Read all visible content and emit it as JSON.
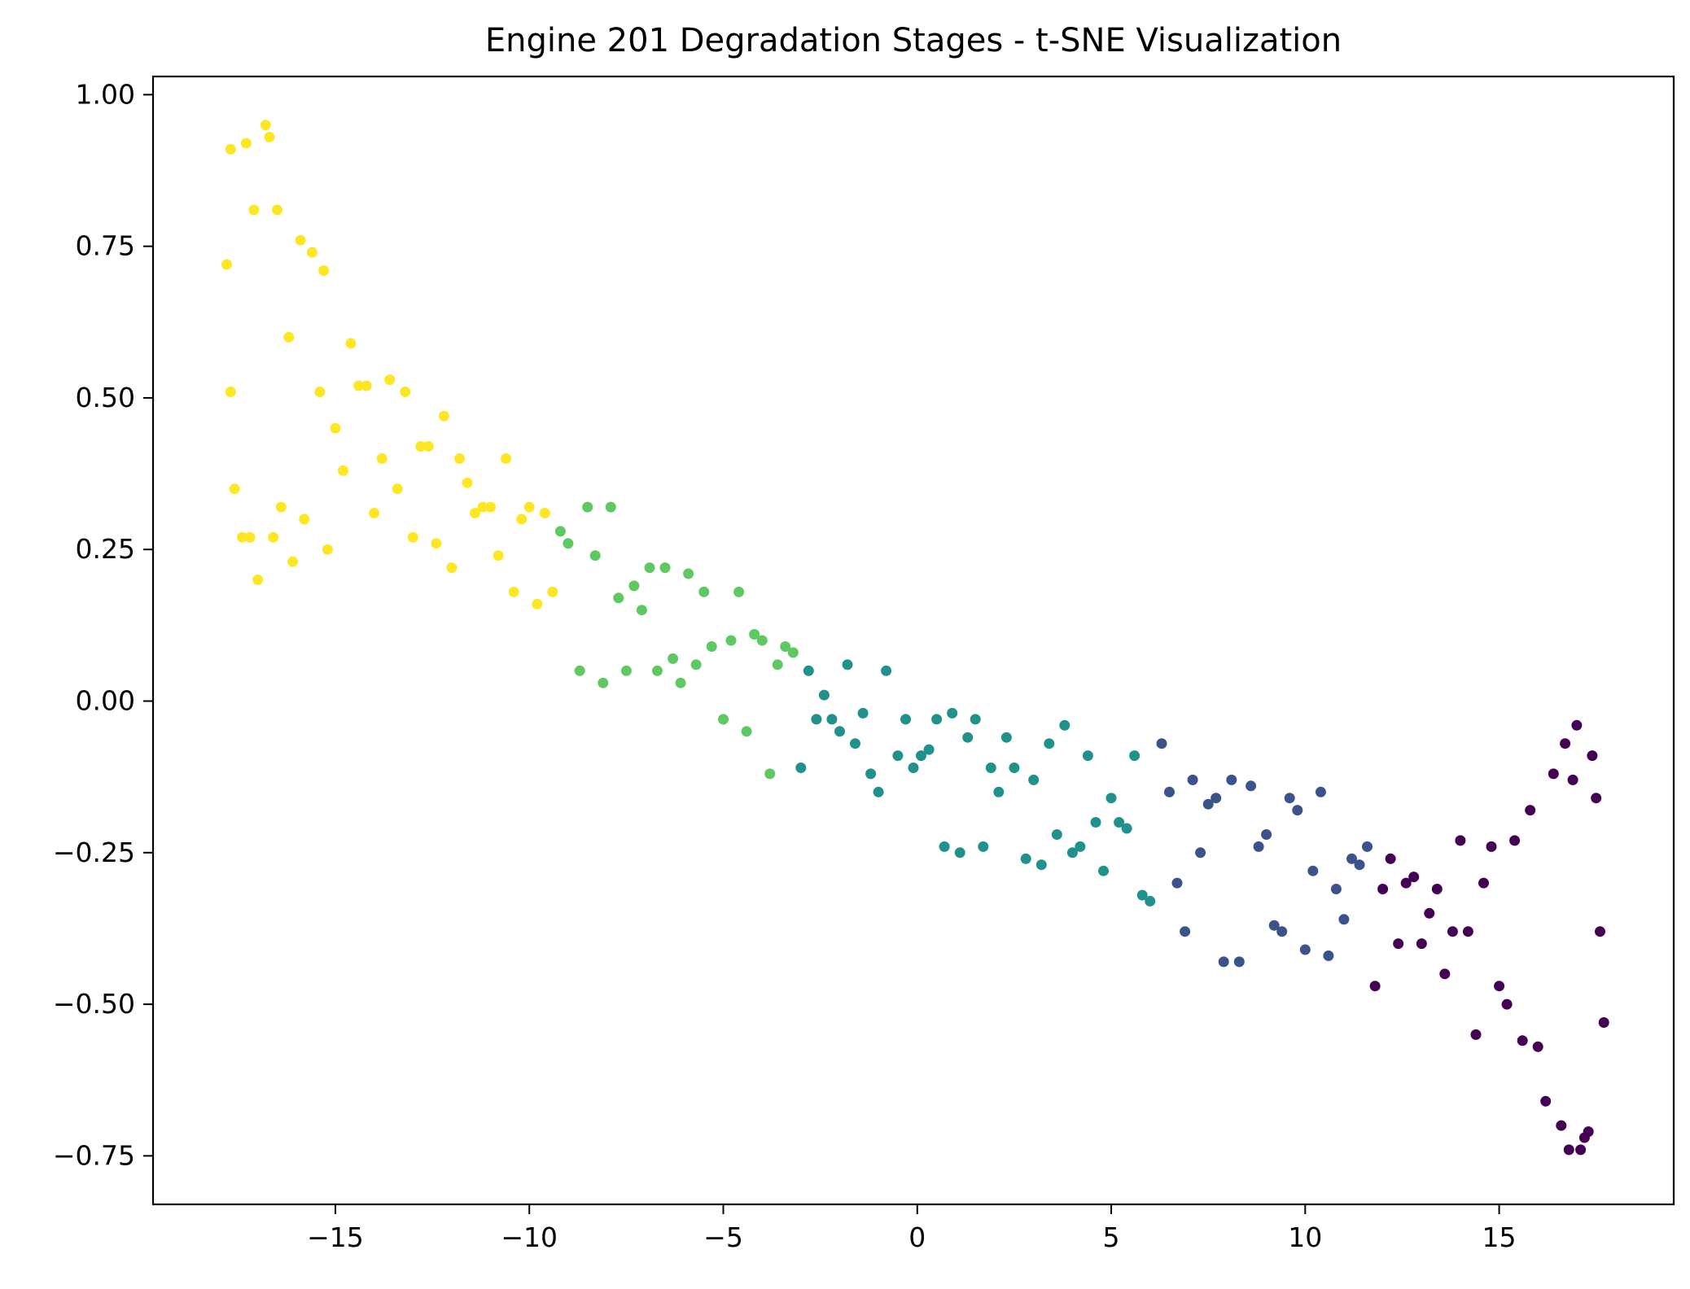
{
  "chart_data": {
    "type": "scatter",
    "title": "Engine 201 Degradation Stages - t-SNE Visualization",
    "xlabel": "",
    "ylabel": "",
    "xlim": [
      -19.7,
      19.5
    ],
    "ylim": [
      -0.83,
      1.03
    ],
    "grid": false,
    "legend": "none",
    "x_ticks": [
      -15,
      -10,
      -5,
      0,
      5,
      10,
      15
    ],
    "x_tick_labels": [
      "−15",
      "−10",
      "−5",
      "0",
      "5",
      "10",
      "15"
    ],
    "y_ticks": [
      1.0,
      0.75,
      0.5,
      0.25,
      0.0,
      -0.25,
      -0.5,
      -0.75
    ],
    "y_tick_labels": [
      "1.00",
      "0.75",
      "0.50",
      "0.25",
      "0.00",
      "−0.25",
      "−0.50",
      "−0.75"
    ],
    "series": [
      {
        "color": "#fde725",
        "points": [
          [
            -17.8,
            0.72
          ],
          [
            -17.7,
            0.91
          ],
          [
            -17.7,
            0.51
          ],
          [
            -17.6,
            0.35
          ],
          [
            -17.4,
            0.27
          ],
          [
            -17.3,
            0.92
          ],
          [
            -17.2,
            0.27
          ],
          [
            -17.1,
            0.81
          ],
          [
            -17.0,
            0.2
          ],
          [
            -16.8,
            0.95
          ],
          [
            -16.7,
            0.93
          ],
          [
            -16.6,
            0.27
          ],
          [
            -16.5,
            0.81
          ],
          [
            -16.4,
            0.32
          ],
          [
            -16.2,
            0.6
          ],
          [
            -16.1,
            0.23
          ],
          [
            -15.9,
            0.76
          ],
          [
            -15.8,
            0.3
          ],
          [
            -15.6,
            0.74
          ],
          [
            -15.4,
            0.51
          ],
          [
            -15.3,
            0.71
          ],
          [
            -15.2,
            0.25
          ],
          [
            -15.0,
            0.45
          ],
          [
            -14.8,
            0.38
          ],
          [
            -14.6,
            0.59
          ],
          [
            -14.4,
            0.52
          ],
          [
            -14.2,
            0.52
          ],
          [
            -14.0,
            0.31
          ],
          [
            -13.8,
            0.4
          ],
          [
            -13.6,
            0.53
          ],
          [
            -13.4,
            0.35
          ],
          [
            -13.2,
            0.51
          ],
          [
            -13.0,
            0.27
          ],
          [
            -12.8,
            0.42
          ],
          [
            -12.6,
            0.42
          ],
          [
            -12.4,
            0.26
          ],
          [
            -12.2,
            0.47
          ],
          [
            -12.0,
            0.22
          ],
          [
            -11.8,
            0.4
          ],
          [
            -11.6,
            0.36
          ],
          [
            -11.4,
            0.31
          ],
          [
            -11.2,
            0.32
          ],
          [
            -11.0,
            0.32
          ],
          [
            -10.8,
            0.24
          ],
          [
            -10.6,
            0.4
          ],
          [
            -10.4,
            0.18
          ],
          [
            -10.2,
            0.3
          ],
          [
            -10.0,
            0.32
          ],
          [
            -9.8,
            0.16
          ],
          [
            -9.6,
            0.31
          ],
          [
            -9.4,
            0.18
          ]
        ]
      },
      {
        "color": "#5ec962",
        "points": [
          [
            -9.2,
            0.28
          ],
          [
            -9.0,
            0.26
          ],
          [
            -8.7,
            0.05
          ],
          [
            -8.5,
            0.32
          ],
          [
            -8.3,
            0.24
          ],
          [
            -8.1,
            0.03
          ],
          [
            -7.9,
            0.32
          ],
          [
            -7.7,
            0.17
          ],
          [
            -7.5,
            0.05
          ],
          [
            -7.3,
            0.19
          ],
          [
            -7.1,
            0.15
          ],
          [
            -6.9,
            0.22
          ],
          [
            -6.7,
            0.05
          ],
          [
            -6.5,
            0.22
          ],
          [
            -6.3,
            0.07
          ],
          [
            -6.1,
            0.03
          ],
          [
            -5.9,
            0.21
          ],
          [
            -5.7,
            0.06
          ],
          [
            -5.5,
            0.18
          ],
          [
            -5.3,
            0.09
          ],
          [
            -5.0,
            -0.03
          ],
          [
            -4.8,
            0.1
          ],
          [
            -4.6,
            0.18
          ],
          [
            -4.4,
            -0.05
          ],
          [
            -4.2,
            0.11
          ],
          [
            -4.0,
            0.1
          ],
          [
            -3.8,
            -0.12
          ],
          [
            -3.6,
            0.06
          ],
          [
            -3.4,
            0.09
          ],
          [
            -3.2,
            0.08
          ]
        ]
      },
      {
        "color": "#21918c",
        "points": [
          [
            -3.0,
            -0.11
          ],
          [
            -2.8,
            0.05
          ],
          [
            -2.6,
            -0.03
          ],
          [
            -2.4,
            0.01
          ],
          [
            -2.2,
            -0.03
          ],
          [
            -2.0,
            -0.05
          ],
          [
            -1.8,
            0.06
          ],
          [
            -1.6,
            -0.07
          ],
          [
            -1.4,
            -0.02
          ],
          [
            -1.2,
            -0.12
          ],
          [
            -1.0,
            -0.15
          ],
          [
            -0.8,
            0.05
          ],
          [
            -0.5,
            -0.09
          ],
          [
            -0.3,
            -0.03
          ],
          [
            -0.1,
            -0.11
          ],
          [
            0.1,
            -0.09
          ],
          [
            0.3,
            -0.08
          ],
          [
            0.5,
            -0.03
          ],
          [
            0.7,
            -0.24
          ],
          [
            0.9,
            -0.02
          ],
          [
            1.1,
            -0.25
          ],
          [
            1.3,
            -0.06
          ],
          [
            1.5,
            -0.03
          ],
          [
            1.7,
            -0.24
          ],
          [
            1.9,
            -0.11
          ],
          [
            2.1,
            -0.15
          ],
          [
            2.3,
            -0.06
          ],
          [
            2.5,
            -0.11
          ],
          [
            2.8,
            -0.26
          ],
          [
            3.0,
            -0.13
          ],
          [
            3.2,
            -0.27
          ],
          [
            3.4,
            -0.07
          ],
          [
            3.6,
            -0.22
          ],
          [
            3.8,
            -0.04
          ],
          [
            4.0,
            -0.25
          ],
          [
            4.2,
            -0.24
          ],
          [
            4.4,
            -0.09
          ],
          [
            4.6,
            -0.2
          ],
          [
            4.8,
            -0.28
          ],
          [
            5.0,
            -0.16
          ],
          [
            5.2,
            -0.2
          ],
          [
            5.4,
            -0.21
          ],
          [
            5.6,
            -0.09
          ],
          [
            5.8,
            -0.32
          ],
          [
            6.0,
            -0.33
          ]
        ]
      },
      {
        "color": "#3b528b",
        "points": [
          [
            6.3,
            -0.07
          ],
          [
            6.5,
            -0.15
          ],
          [
            6.7,
            -0.3
          ],
          [
            6.9,
            -0.38
          ],
          [
            7.1,
            -0.13
          ],
          [
            7.3,
            -0.25
          ],
          [
            7.5,
            -0.17
          ],
          [
            7.7,
            -0.16
          ],
          [
            7.9,
            -0.43
          ],
          [
            8.1,
            -0.13
          ],
          [
            8.3,
            -0.43
          ],
          [
            8.6,
            -0.14
          ],
          [
            8.8,
            -0.24
          ],
          [
            9.0,
            -0.22
          ],
          [
            9.2,
            -0.37
          ],
          [
            9.4,
            -0.38
          ],
          [
            9.6,
            -0.16
          ],
          [
            9.8,
            -0.18
          ],
          [
            10.0,
            -0.41
          ],
          [
            10.2,
            -0.28
          ],
          [
            10.4,
            -0.15
          ],
          [
            10.6,
            -0.42
          ],
          [
            10.8,
            -0.31
          ],
          [
            11.0,
            -0.36
          ],
          [
            11.2,
            -0.26
          ],
          [
            11.4,
            -0.27
          ],
          [
            11.6,
            -0.24
          ]
        ]
      },
      {
        "color": "#440154",
        "points": [
          [
            11.8,
            -0.47
          ],
          [
            12.0,
            -0.31
          ],
          [
            12.2,
            -0.26
          ],
          [
            12.4,
            -0.4
          ],
          [
            12.6,
            -0.3
          ],
          [
            12.8,
            -0.29
          ],
          [
            13.0,
            -0.4
          ],
          [
            13.2,
            -0.35
          ],
          [
            13.4,
            -0.31
          ],
          [
            13.6,
            -0.45
          ],
          [
            13.8,
            -0.38
          ],
          [
            14.0,
            -0.23
          ],
          [
            14.2,
            -0.38
          ],
          [
            14.4,
            -0.55
          ],
          [
            14.6,
            -0.3
          ],
          [
            14.8,
            -0.24
          ],
          [
            15.0,
            -0.47
          ],
          [
            15.2,
            -0.5
          ],
          [
            15.4,
            -0.23
          ],
          [
            15.6,
            -0.56
          ],
          [
            15.8,
            -0.18
          ],
          [
            16.0,
            -0.57
          ],
          [
            16.2,
            -0.66
          ],
          [
            16.4,
            -0.12
          ],
          [
            16.6,
            -0.7
          ],
          [
            16.7,
            -0.07
          ],
          [
            16.8,
            -0.74
          ],
          [
            16.9,
            -0.13
          ],
          [
            17.0,
            -0.04
          ],
          [
            17.1,
            -0.74
          ],
          [
            17.2,
            -0.72
          ],
          [
            17.3,
            -0.71
          ],
          [
            17.4,
            -0.09
          ],
          [
            17.5,
            -0.16
          ],
          [
            17.6,
            -0.38
          ],
          [
            17.7,
            -0.53
          ]
        ]
      }
    ]
  }
}
